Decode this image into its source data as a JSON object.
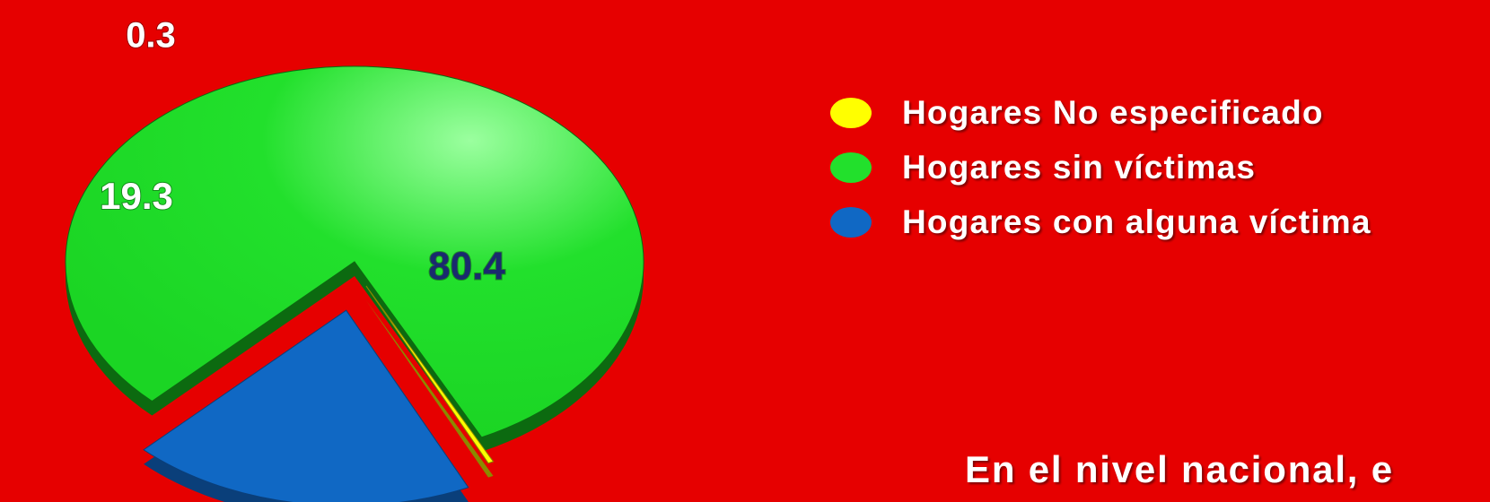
{
  "chart_data": {
    "type": "pie",
    "slices": [
      {
        "label": "Hogares No especificado",
        "value": 0.3,
        "display": "0.3",
        "color": "#ffff00",
        "side_color": "#8a8a00",
        "label_color": "#ffffff"
      },
      {
        "label": "Hogares sin víctimas",
        "value": 80.4,
        "display": "80.4",
        "color": "#22e02c",
        "side_color": "#0c6a10",
        "label_color": "#1a2a6e"
      },
      {
        "label": "Hogares con alguna víctima",
        "value": 19.3,
        "display": "19.3",
        "color": "#1068c4",
        "side_color": "#0a3f7a",
        "label_color": "#ffffff"
      }
    ],
    "legend_position": "right",
    "exploded": true,
    "three_d": true
  },
  "background_color": "#e60000",
  "footer": {
    "text": "En el nivel nacional, e"
  }
}
